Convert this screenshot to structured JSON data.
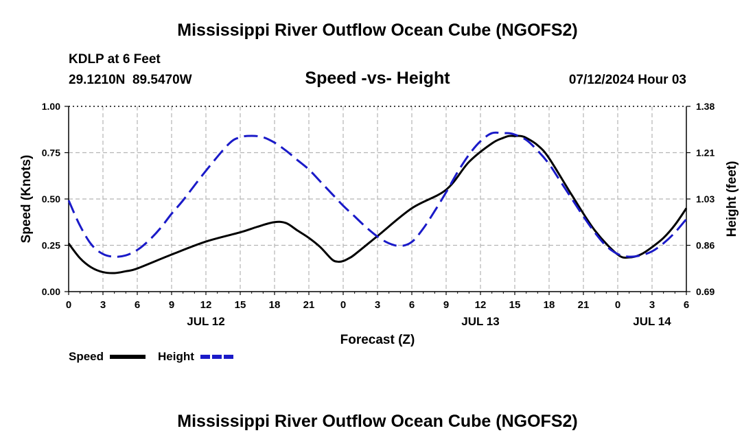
{
  "page": {
    "title": "Mississippi River Outflow Ocean Cube (NGOFS2)",
    "footer_title": "Mississippi River Outflow Ocean Cube (NGOFS2)",
    "station": "KDLP at 6 Feet",
    "coords": "29.1210N  89.5470W",
    "subtitle": "Speed -vs- Height",
    "datetime": "07/12/2024 Hour 03"
  },
  "chart_data": {
    "type": "line",
    "title": "Speed -vs- Height",
    "xlabel": "Forecast (Z)",
    "ylabel": "Speed (Knots)",
    "y2label": "Height (feet)",
    "x_unit": "hours since 00Z JUL 12",
    "xlim": [
      0,
      54
    ],
    "ylim": [
      0,
      1
    ],
    "y2lim": [
      0.69,
      1.38
    ],
    "x_ticks": [
      0,
      3,
      6,
      9,
      12,
      15,
      18,
      21,
      24,
      27,
      30,
      33,
      36,
      39,
      42,
      45,
      48,
      51,
      54
    ],
    "x_tick_labels": [
      "0",
      "3",
      "6",
      "9",
      "12",
      "15",
      "18",
      "21",
      "0",
      "3",
      "6",
      "9",
      "12",
      "15",
      "18",
      "21",
      "0",
      "3",
      "6"
    ],
    "y_ticks": [
      "0.00",
      "0.25",
      "0.50",
      "0.75",
      "1.00"
    ],
    "y2_ticks": [
      "0.69",
      "0.86",
      "1.03",
      "1.21",
      "1.38"
    ],
    "date_labels": [
      {
        "x": 12,
        "label": "JUL 12"
      },
      {
        "x": 36,
        "label": "JUL 13"
      },
      {
        "x": 51,
        "label": "JUL 14"
      }
    ],
    "grid": true,
    "legend_position": "bottom-left",
    "series": [
      {
        "name": "Speed",
        "axis": "left",
        "color": "#000000",
        "style": "solid",
        "x": [
          0,
          1,
          2,
          3,
          4,
          5,
          6,
          9,
          12,
          15,
          16.5,
          18,
          19,
          20,
          21,
          22,
          23,
          23.5,
          24,
          24.5,
          25,
          27,
          30,
          33,
          35,
          37,
          38,
          38.5,
          39,
          39.5,
          40,
          41,
          42,
          44,
          46,
          48,
          49,
          50,
          51,
          52,
          53,
          54
        ],
        "values": [
          0.26,
          0.18,
          0.13,
          0.105,
          0.1,
          0.11,
          0.125,
          0.2,
          0.27,
          0.32,
          0.35,
          0.375,
          0.37,
          0.33,
          0.29,
          0.24,
          0.175,
          0.162,
          0.165,
          0.18,
          0.2,
          0.3,
          0.45,
          0.55,
          0.7,
          0.8,
          0.83,
          0.84,
          0.84,
          0.84,
          0.83,
          0.79,
          0.72,
          0.52,
          0.33,
          0.2,
          0.185,
          0.2,
          0.24,
          0.29,
          0.36,
          0.45
        ]
      },
      {
        "name": "Height",
        "axis": "right",
        "color": "#1a1ac8",
        "style": "dashed",
        "x": [
          0,
          1,
          2,
          3,
          4,
          5,
          6,
          7,
          8,
          9,
          10,
          12,
          14,
          15,
          16,
          17,
          18,
          19,
          20,
          21,
          22,
          23,
          24,
          25,
          26,
          27,
          28,
          29,
          30,
          31,
          32,
          33,
          34,
          35,
          36,
          37,
          38,
          38.5,
          39,
          40,
          41,
          42,
          43,
          44,
          45,
          46,
          47,
          48,
          49,
          50,
          51,
          52,
          53,
          54
        ],
        "values": [
          1.03,
          0.935,
          0.865,
          0.83,
          0.82,
          0.825,
          0.845,
          0.88,
          0.925,
          0.98,
          1.03,
          1.14,
          1.24,
          1.265,
          1.27,
          1.265,
          1.245,
          1.215,
          1.18,
          1.145,
          1.1,
          1.055,
          1.01,
          0.97,
          0.93,
          0.895,
          0.87,
          0.86,
          0.875,
          0.925,
          0.99,
          1.06,
          1.135,
          1.2,
          1.25,
          1.28,
          1.28,
          1.28,
          1.275,
          1.255,
          1.215,
          1.165,
          1.1,
          1.035,
          0.97,
          0.91,
          0.86,
          0.83,
          0.82,
          0.825,
          0.84,
          0.87,
          0.91,
          0.96
        ]
      }
    ]
  }
}
